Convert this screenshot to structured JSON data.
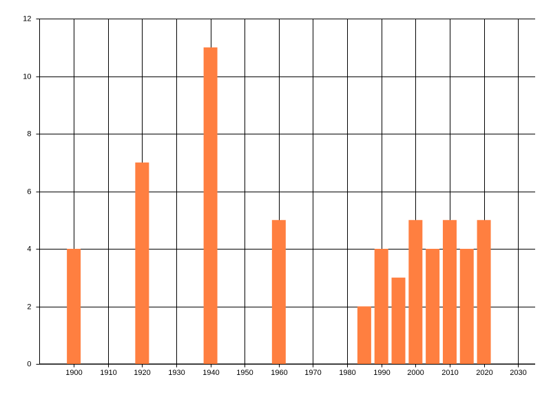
{
  "chart_data": {
    "type": "bar",
    "x": [
      1900,
      1920,
      1940,
      1960,
      1985,
      1990,
      1995,
      2000,
      2005,
      2010,
      2015,
      2020
    ],
    "values": [
      4,
      7,
      11,
      5,
      2,
      4,
      3,
      5,
      4,
      5,
      4,
      5
    ],
    "color": "#ff7f40",
    "xlim": [
      1890,
      2035
    ],
    "xticks": [
      1900,
      1910,
      1920,
      1930,
      1940,
      1950,
      1960,
      1970,
      1980,
      1990,
      2000,
      2010,
      2020,
      2030
    ],
    "ylim": [
      0,
      12
    ],
    "yticks": [
      0,
      2,
      4,
      6,
      8,
      10,
      12
    ],
    "grid": true
  }
}
